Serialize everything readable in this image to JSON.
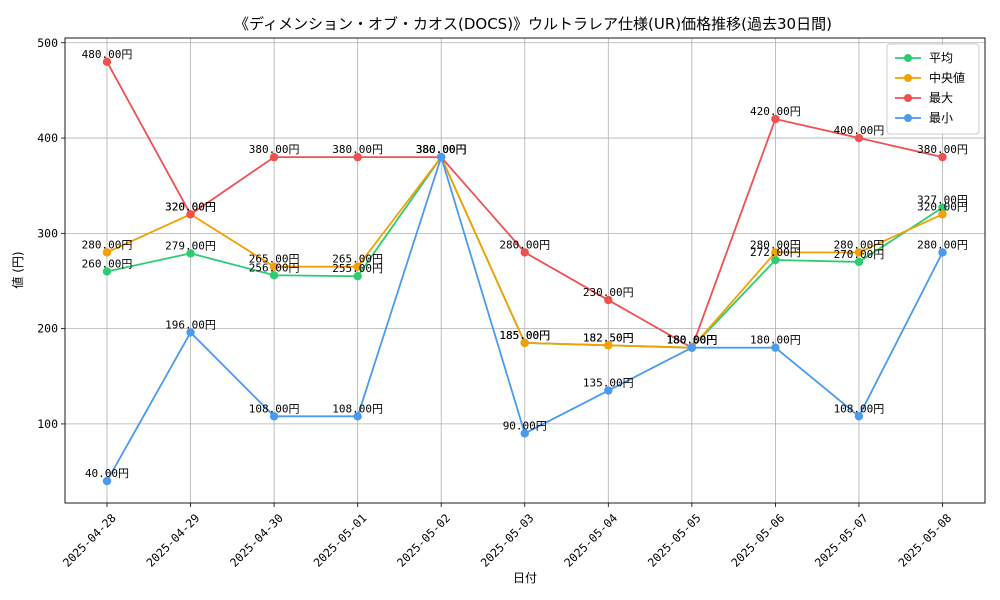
{
  "chart_data": {
    "type": "line",
    "title": "《ディメンション・オブ・カオス(DOCS)》ウルトラレア仕様(UR)価格推移(過去30日間)",
    "xlabel": "日付",
    "ylabel": "値 (円)",
    "x": [
      "2025-04-28",
      "2025-04-29",
      "2025-04-30",
      "2025-05-01",
      "2025-05-02",
      "2025-05-03",
      "2025-05-04",
      "2025-05-05",
      "2025-05-06",
      "2025-05-07",
      "2025-05-08"
    ],
    "ylim": [
      17,
      505
    ],
    "yticks": [
      100,
      200,
      300,
      400,
      500
    ],
    "grid": true,
    "legend_position": "top-right",
    "label_suffix": "円",
    "series": [
      {
        "name": "平均",
        "color": "#2ecc71",
        "values": [
          260.0,
          279.0,
          256.0,
          255.0,
          380.0,
          185.0,
          182.5,
          180.0,
          272.0,
          270.0,
          327.0
        ]
      },
      {
        "name": "中央値",
        "color": "#f5a000",
        "values": [
          280.0,
          320.0,
          265.0,
          265.0,
          380.0,
          185.0,
          182.5,
          180.0,
          280.0,
          280.0,
          320.0
        ]
      },
      {
        "name": "最大",
        "color": "#f05050",
        "values": [
          480.0,
          320.0,
          380.0,
          380.0,
          380.0,
          280.0,
          230.0,
          180.0,
          420.0,
          400.0,
          380.0
        ]
      },
      {
        "name": "最小",
        "color": "#4a9af0",
        "values": [
          40.0,
          196.0,
          108.0,
          108.0,
          380.0,
          90.0,
          135.0,
          180.0,
          180.0,
          108.0,
          280.0
        ]
      }
    ]
  }
}
